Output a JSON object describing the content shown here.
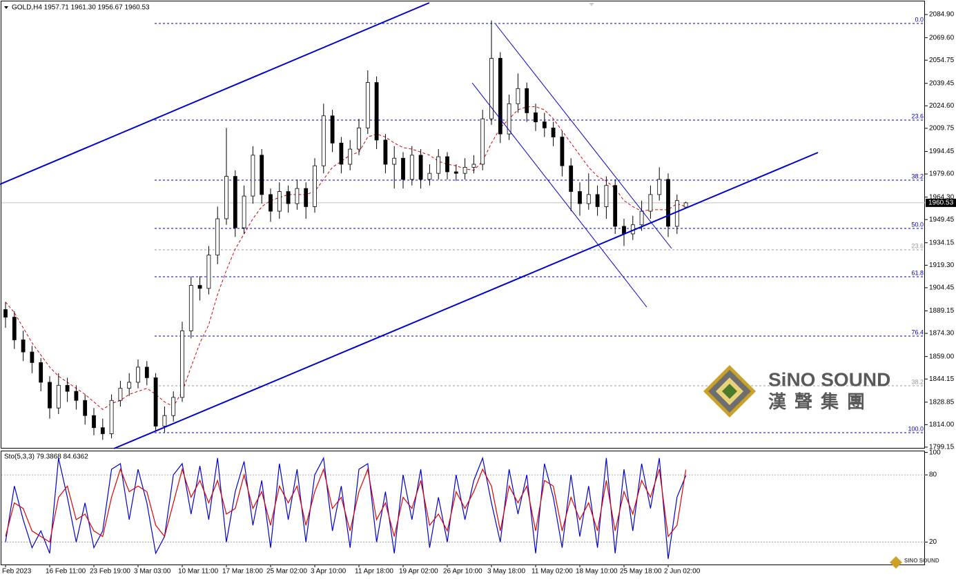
{
  "chart_data": [
    {
      "type": "candlestick",
      "title": "GOLD,H4  1957.71 1961.30 1956.67 1960.53",
      "ylim": [
        1798.2,
        2094.5
      ],
      "yticks": [
        {
          "value": 2084.9,
          "label": "2084.90"
        },
        {
          "value": 2069.6,
          "label": "2069.60"
        },
        {
          "value": 2054.75,
          "label": "2054.75"
        },
        {
          "value": 2039.45,
          "label": "2039.45"
        },
        {
          "value": 2024.6,
          "label": "2024.60"
        },
        {
          "value": 2009.75,
          "label": "2009.75"
        },
        {
          "value": 1994.45,
          "label": "1994.45"
        },
        {
          "value": 1979.6,
          "label": "1979.60"
        },
        {
          "value": 1964.3,
          "label": "1964.30"
        },
        {
          "value": 1949.45,
          "label": "1949.45"
        },
        {
          "value": 1934.15,
          "label": "1934.15"
        },
        {
          "value": 1919.3,
          "label": "1919.30"
        },
        {
          "value": 1904.45,
          "label": "1904.45"
        },
        {
          "value": 1889.15,
          "label": "1889.15"
        },
        {
          "value": 1874.3,
          "label": "1874.30"
        },
        {
          "value": 1859.0,
          "label": "1859.00"
        },
        {
          "value": 1844.15,
          "label": "1844.15"
        },
        {
          "value": 1828.85,
          "label": "1828.85"
        },
        {
          "value": 1814.0,
          "label": "1814.00"
        },
        {
          "value": 1799.15,
          "label": "1799.15"
        }
      ],
      "categories": [
        "Feb 2023",
        null,
        null,
        null,
        null,
        "16 Feb 11:00",
        null,
        null,
        null,
        null,
        "23 Feb 19:00",
        null,
        null,
        null,
        null,
        "3 Mar 03:00",
        null,
        null,
        null,
        null,
        "10 Mar 11:00",
        null,
        null,
        null,
        null,
        "17 Mar 18:00",
        null,
        null,
        null,
        null,
        "25 Mar 02:00",
        null,
        null,
        null,
        null,
        "3 Apr 10:00",
        null,
        null,
        null,
        null,
        "11 Apr 18:00",
        null,
        null,
        null,
        null,
        "19 Apr 02:00",
        null,
        null,
        null,
        null,
        "26 Apr 10:00",
        null,
        null,
        null,
        null,
        "3 May 18:00",
        null,
        null,
        null,
        null,
        "11 May 02:00",
        null,
        null,
        null,
        null,
        "18 May 10:00",
        null,
        null,
        null,
        null,
        "25 May 18:00",
        null,
        null,
        null,
        null,
        "2 Jun 02:00",
        null,
        null
      ],
      "open": [
        1890,
        1885,
        1870,
        1862,
        1855,
        1842,
        1825,
        1840,
        1836,
        1830,
        1820,
        1812,
        1808,
        1830,
        1838,
        1842,
        1852,
        1845,
        1813,
        1820,
        1832,
        1876,
        1906,
        1904,
        1926,
        1950,
        1978,
        1944,
        1965,
        1992,
        1966,
        1955,
        1968,
        1960,
        1970,
        1958,
        1985,
        2018,
        2000,
        1986,
        1996,
        2010,
        2040,
        2002,
        1986,
        1990,
        1976,
        1992,
        1976,
        1980,
        1991,
        1981,
        1980,
        1984,
        1986,
        2016,
        2056,
        2006,
        2026,
        2036,
        2020,
        2014,
        2010,
        2004,
        1985,
        1968,
        1960,
        1966,
        1958,
        1972,
        1945,
        1940,
        1946,
        1955,
        1966,
        1976,
        1945,
        1957.71
      ],
      "high": [
        1895,
        1889,
        1876,
        1866,
        1858,
        1846,
        1848,
        1845,
        1840,
        1834,
        1825,
        1818,
        1834,
        1843,
        1848,
        1857,
        1856,
        1848,
        1826,
        1836,
        1882,
        1912,
        1912,
        1932,
        1958,
        2010,
        1982,
        1972,
        1998,
        1996,
        1970,
        1974,
        1972,
        1976,
        1974,
        1990,
        2026,
        2022,
        2004,
        2002,
        2016,
        2048,
        2044,
        2006,
        1998,
        1994,
        1998,
        1996,
        1986,
        1996,
        1994,
        1986,
        1990,
        1992,
        2022,
        2081,
        2060,
        2032,
        2046,
        2040,
        2026,
        2020,
        2014,
        2008,
        1990,
        1974,
        1980,
        1972,
        1978,
        1976,
        1950,
        1952,
        1962,
        1972,
        1984,
        1980,
        1966,
        1961.3
      ],
      "low": [
        1878,
        1864,
        1856,
        1848,
        1836,
        1818,
        1821,
        1829,
        1824,
        1814,
        1807,
        1804,
        1805,
        1826,
        1833,
        1838,
        1840,
        1810,
        1809,
        1816,
        1829,
        1871,
        1896,
        1900,
        1920,
        1946,
        1938,
        1940,
        1960,
        1960,
        1948,
        1950,
        1954,
        1956,
        1950,
        1954,
        1980,
        1994,
        1980,
        1982,
        1992,
        2006,
        1996,
        1980,
        1970,
        1970,
        1972,
        1970,
        1972,
        1976,
        1976,
        1975,
        1976,
        1980,
        1982,
        2012,
        2000,
        2002,
        2020,
        2014,
        2008,
        2004,
        1998,
        1978,
        1955,
        1952,
        1956,
        1952,
        1950,
        1940,
        1932,
        1936,
        1942,
        1950,
        1962,
        1938,
        1940,
        1956.67
      ],
      "close": [
        1885,
        1870,
        1862,
        1855,
        1842,
        1825,
        1840,
        1836,
        1830,
        1820,
        1812,
        1808,
        1830,
        1838,
        1842,
        1852,
        1845,
        1813,
        1820,
        1832,
        1876,
        1906,
        1904,
        1926,
        1950,
        1978,
        1944,
        1965,
        1992,
        1966,
        1955,
        1968,
        1960,
        1970,
        1958,
        1985,
        2018,
        2000,
        1986,
        1996,
        2010,
        2040,
        2002,
        1986,
        1990,
        1976,
        1992,
        1976,
        1980,
        1991,
        1981,
        1980,
        1984,
        1986,
        2016,
        2056,
        2006,
        2026,
        2036,
        2020,
        2014,
        2010,
        2004,
        1985,
        1968,
        1960,
        1966,
        1958,
        1972,
        1945,
        1940,
        1946,
        1955,
        1966,
        1976,
        1945,
        1962,
        1960.53
      ],
      "series": [
        {
          "color": "#d40000",
          "dash": true,
          "values": [
            1895,
            1888,
            1878,
            1868,
            1860,
            1852,
            1846,
            1842,
            1838,
            1834,
            1829,
            1824,
            1828,
            1830,
            1834,
            1836,
            1838,
            1834,
            1829,
            1826,
            1836,
            1852,
            1868,
            1880,
            1900,
            1916,
            1930,
            1940,
            1950,
            1958,
            1962,
            1964,
            1966,
            1966,
            1966,
            1968,
            1976,
            1984,
            1988,
            1992,
            1994,
            2004,
            2006,
            2004,
            2000,
            1997,
            1996,
            1994,
            1992,
            1988,
            1986,
            1985,
            1983,
            1982,
            1988,
            2000,
            2010,
            2016,
            2022,
            2024,
            2024,
            2022,
            2016,
            2008,
            2000,
            1992,
            1984,
            1978,
            1975,
            1970,
            1962,
            1958,
            1955,
            1956,
            1956,
            1956,
            1960,
            1958
          ]
        }
      ],
      "fib_levels": [
        {
          "label": "0.0",
          "price": 2079.0,
          "color": "#0000c0"
        },
        {
          "label": "23.6",
          "price": 2015.2,
          "color": "#0000c0"
        },
        {
          "label": "38.2",
          "price": 1975.5,
          "color": "#0000c0"
        },
        {
          "label": "50.0",
          "price": 1943.6,
          "color": "#0000c0"
        },
        {
          "label": "61.8",
          "price": 1911.7,
          "color": "#0000c0"
        },
        {
          "label": "76.4",
          "price": 1872.5,
          "color": "#0000c0"
        },
        {
          "label": "100.0",
          "price": 1808.7,
          "color": "#0000c0"
        },
        {
          "label": "23.6",
          "price": 1929.5,
          "color": "#999999"
        },
        {
          "label": "38.2",
          "price": 1839.7,
          "color": "#999999"
        }
      ],
      "current_price": {
        "value": 1960.53,
        "label": "1960.53"
      }
    },
    {
      "type": "line",
      "title": "Sto(5,3,3) 79.3868 84.6362",
      "ylim": [
        0,
        101
      ],
      "yticks": [
        100,
        80,
        20
      ],
      "levels": [
        80,
        20
      ],
      "series": [
        {
          "color": "#0000d0",
          "values": [
            20,
            70,
            40,
            15,
            30,
            10,
            95,
            60,
            20,
            55,
            15,
            30,
            85,
            90,
            40,
            85,
            55,
            10,
            25,
            80,
            90,
            45,
            88,
            40,
            95,
            20,
            65,
            92,
            35,
            75,
            15,
            90,
            40,
            85,
            20,
            80,
            95,
            30,
            70,
            15,
            85,
            90,
            20,
            65,
            10,
            80,
            40,
            85,
            15,
            60,
            20,
            80,
            40,
            75,
            95,
            55,
            20,
            85,
            45,
            80,
            10,
            90,
            60,
            15,
            80,
            25,
            70,
            15,
            95,
            10,
            85,
            30,
            90,
            50,
            95,
            5,
            60,
            79.3868
          ]
        },
        {
          "color": "#e00000",
          "values": [
            25,
            55,
            50,
            30,
            25,
            20,
            60,
            70,
            40,
            45,
            30,
            25,
            60,
            85,
            65,
            70,
            65,
            35,
            25,
            55,
            85,
            60,
            75,
            55,
            75,
            45,
            50,
            80,
            50,
            65,
            35,
            70,
            55,
            70,
            35,
            65,
            85,
            50,
            60,
            30,
            65,
            85,
            40,
            55,
            25,
            60,
            50,
            75,
            35,
            45,
            30,
            65,
            50,
            65,
            85,
            70,
            30,
            70,
            55,
            70,
            30,
            75,
            70,
            30,
            60,
            40,
            55,
            30,
            75,
            30,
            65,
            45,
            75,
            60,
            85,
            25,
            35,
            84.6362
          ]
        }
      ]
    }
  ],
  "logo": {
    "en": "SiNO SOUND",
    "zh": "漢聲集團",
    "small": "SINO SOUND"
  }
}
